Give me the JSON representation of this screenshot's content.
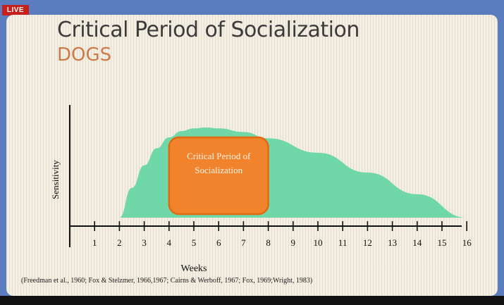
{
  "badge": {
    "label": "LIVE",
    "color": "#c6201d"
  },
  "slide": {
    "title": "Critical Period of Socialization",
    "subtitle": "DOGS",
    "subtitle_color": "#cd7a4a",
    "citation": "(Freedman et al., 1960; Fox & Stelzmer, 1966,1967; Cairns & Werboff, 1967; Fox, 1969;Wright, 1983)"
  },
  "chart_data": {
    "type": "area",
    "xlabel": "Weeks",
    "ylabel": "Sensitivity",
    "x_ticks": [
      "1",
      "2",
      "3",
      "4",
      "5",
      "6",
      "7",
      "8",
      "9",
      "10",
      "11",
      "12",
      "13",
      "14",
      "15",
      "16"
    ],
    "xlim": [
      0,
      16
    ],
    "ylim": [
      0,
      1
    ],
    "series": [
      {
        "color": "#6fd7a8",
        "x": [
          2,
          2.5,
          3,
          3.5,
          4,
          4.5,
          5,
          5.5,
          6,
          7,
          8,
          10,
          12,
          14,
          16
        ],
        "y": [
          0.0,
          0.33,
          0.58,
          0.77,
          0.89,
          0.96,
          0.99,
          1.0,
          0.99,
          0.95,
          0.88,
          0.72,
          0.5,
          0.26,
          0.0
        ]
      }
    ],
    "highlight": {
      "label_lines": [
        "Critical Period of",
        "Socialization"
      ],
      "x_start": 4,
      "x_end": 8,
      "color": "#f0832c",
      "border_color": "#e06a14"
    }
  }
}
